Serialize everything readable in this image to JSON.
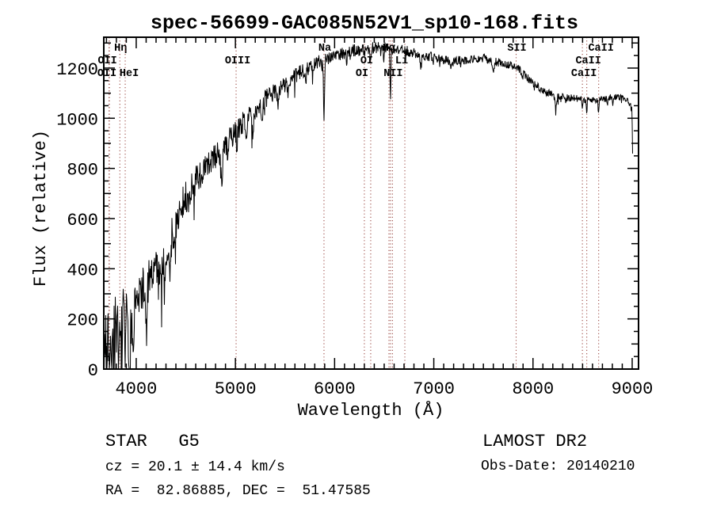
{
  "title": "spec-56699-GAC085N52V1_sp10-168.fits",
  "annotations": {
    "class_label": "STAR   G5",
    "cz": "cz = 20.1 ± 14.4 km/s",
    "radec": "RA =  82.86885, DEC =  51.47585",
    "survey": "LAMOST DR2",
    "obs_date": "Obs-Date: 20140210"
  },
  "chart_data": {
    "type": "line",
    "title": "spec-56699-GAC085N52V1_sp10-168.fits",
    "xlabel": "Wavelength (Å)",
    "ylabel": "Flux (relative)",
    "xlim": [
      3673,
      9064
    ],
    "ylim": [
      0,
      1323
    ],
    "x_major_ticks": [
      4000,
      5000,
      6000,
      7000,
      8000,
      9000
    ],
    "x_minor_step": 100,
    "y_major_ticks": [
      0,
      200,
      400,
      600,
      800,
      1000,
      1200
    ],
    "y_minor_step": 50,
    "grid": false,
    "legend": null,
    "line_color": "#000000",
    "marker_line_color": "#9c4a44",
    "seed": 7,
    "spectrum_end": 9008,
    "line_markers": [
      {
        "label": "OII",
        "wavelength": 3726,
        "row": 2,
        "dx": -2
      },
      {
        "label": "OII",
        "wavelength": 3729,
        "row": 3,
        "dx": -3
      },
      {
        "label": "Hη",
        "wavelength": 3835,
        "row": 1,
        "dx": 1
      },
      {
        "label": "HeI",
        "wavelength": 3889,
        "row": 3,
        "dx": 5
      },
      {
        "label": "OIII",
        "wavelength": 5007,
        "row": 2,
        "dx": 2
      },
      {
        "label": "Na",
        "wavelength": 5893,
        "row": 1,
        "dx": 1
      },
      {
        "label": "OI",
        "wavelength": 6300,
        "row": 3,
        "dx": -3
      },
      {
        "label": "OI",
        "wavelength": 6364,
        "row": 2,
        "dx": -5
      },
      {
        "label": "",
        "wavelength": 6548,
        "row": 0,
        "dx": 0
      },
      {
        "label": "Hα",
        "wavelength": 6563,
        "row": 1,
        "dx": -2
      },
      {
        "label": "NII",
        "wavelength": 6583,
        "row": 3,
        "dx": 1
      },
      {
        "label": "Li",
        "wavelength": 6708,
        "row": 2,
        "dx": -4
      },
      {
        "label": "SII",
        "wavelength": 7830,
        "row": 1,
        "dx": 1
      },
      {
        "label": "CaII",
        "wavelength": 8498,
        "row": 3,
        "dx": 2
      },
      {
        "label": "CaII",
        "wavelength": 8542,
        "row": 2,
        "dx": 2
      },
      {
        "label": "CaII",
        "wavelength": 8662,
        "row": 1,
        "dx": 3
      }
    ],
    "continuum": [
      [
        3676,
        30
      ],
      [
        3690,
        150
      ],
      [
        3705,
        90
      ],
      [
        3720,
        190
      ],
      [
        3735,
        120
      ],
      [
        3750,
        200
      ],
      [
        3770,
        150
      ],
      [
        3790,
        210
      ],
      [
        3810,
        160
      ],
      [
        3830,
        210
      ],
      [
        3850,
        170
      ],
      [
        3870,
        230
      ],
      [
        3890,
        200
      ],
      [
        3910,
        250
      ],
      [
        3930,
        180
      ],
      [
        3950,
        240
      ],
      [
        3970,
        230
      ],
      [
        4000,
        300
      ],
      [
        4050,
        320
      ],
      [
        4100,
        330
      ],
      [
        4150,
        390
      ],
      [
        4200,
        420
      ],
      [
        4250,
        440
      ],
      [
        4300,
        480
      ],
      [
        4350,
        540
      ],
      [
        4400,
        590
      ],
      [
        4450,
        640
      ],
      [
        4500,
        690
      ],
      [
        4550,
        720
      ],
      [
        4600,
        750
      ],
      [
        4650,
        780
      ],
      [
        4700,
        800
      ],
      [
        4750,
        825
      ],
      [
        4800,
        850
      ],
      [
        4850,
        870
      ],
      [
        4900,
        895
      ],
      [
        4950,
        920
      ],
      [
        5000,
        945
      ],
      [
        5050,
        970
      ],
      [
        5100,
        995
      ],
      [
        5150,
        1015
      ],
      [
        5200,
        1035
      ],
      [
        5250,
        1055
      ],
      [
        5300,
        1075
      ],
      [
        5350,
        1090
      ],
      [
        5400,
        1105
      ],
      [
        5450,
        1120
      ],
      [
        5500,
        1135
      ],
      [
        5550,
        1150
      ],
      [
        5600,
        1165
      ],
      [
        5650,
        1180
      ],
      [
        5700,
        1195
      ],
      [
        5750,
        1205
      ],
      [
        5800,
        1215
      ],
      [
        5850,
        1225
      ],
      [
        5900,
        1235
      ],
      [
        5950,
        1245
      ],
      [
        6000,
        1252
      ],
      [
        6100,
        1262
      ],
      [
        6200,
        1270
      ],
      [
        6300,
        1276
      ],
      [
        6400,
        1281
      ],
      [
        6500,
        1281
      ],
      [
        6600,
        1277
      ],
      [
        6700,
        1271
      ],
      [
        6800,
        1260
      ],
      [
        6900,
        1250
      ],
      [
        7000,
        1242
      ],
      [
        7100,
        1234
      ],
      [
        7200,
        1229
      ],
      [
        7300,
        1232
      ],
      [
        7400,
        1236
      ],
      [
        7500,
        1240
      ],
      [
        7600,
        1228
      ],
      [
        7700,
        1218
      ],
      [
        7800,
        1208
      ],
      [
        7850,
        1200
      ],
      [
        7900,
        1180
      ],
      [
        7950,
        1160
      ],
      [
        8000,
        1140
      ],
      [
        8050,
        1125
      ],
      [
        8100,
        1110
      ],
      [
        8150,
        1102
      ],
      [
        8200,
        1095
      ],
      [
        8300,
        1085
      ],
      [
        8400,
        1080
      ],
      [
        8500,
        1076
      ],
      [
        8600,
        1073
      ],
      [
        8700,
        1076
      ],
      [
        8800,
        1083
      ],
      [
        8850,
        1086
      ],
      [
        8900,
        1080
      ],
      [
        8950,
        1068
      ],
      [
        8985,
        1050
      ],
      [
        8998,
        1030
      ],
      [
        9004,
        870
      ],
      [
        9008,
        700
      ]
    ],
    "noise_profile": [
      [
        3676,
        170
      ],
      [
        3750,
        160
      ],
      [
        3850,
        130
      ],
      [
        3950,
        110
      ],
      [
        4100,
        90
      ],
      [
        4300,
        80
      ],
      [
        4500,
        65
      ],
      [
        4700,
        55
      ],
      [
        5000,
        45
      ],
      [
        5300,
        38
      ],
      [
        5600,
        32
      ],
      [
        5900,
        28
      ],
      [
        6200,
        25
      ],
      [
        6500,
        22
      ],
      [
        6800,
        20
      ],
      [
        7200,
        18
      ],
      [
        7600,
        17
      ],
      [
        8000,
        16
      ],
      [
        8400,
        14
      ],
      [
        8800,
        13
      ],
      [
        9010,
        14
      ]
    ],
    "absorption_lines": [
      [
        3712,
        100,
        6
      ],
      [
        3734,
        130,
        5
      ],
      [
        3750,
        120,
        4
      ],
      [
        3770,
        110,
        5
      ],
      [
        3798,
        140,
        6
      ],
      [
        3820,
        110,
        5
      ],
      [
        3835,
        150,
        6
      ],
      [
        3860,
        120,
        5
      ],
      [
        3889,
        170,
        7
      ],
      [
        3920,
        120,
        5
      ],
      [
        3933,
        190,
        8
      ],
      [
        3968,
        170,
        8
      ],
      [
        4026,
        80,
        5
      ],
      [
        4101,
        190,
        9
      ],
      [
        4144,
        70,
        5
      ],
      [
        4226,
        90,
        6
      ],
      [
        4260,
        70,
        5
      ],
      [
        4300,
        110,
        12
      ],
      [
        4340,
        170,
        9
      ],
      [
        4383,
        100,
        6
      ],
      [
        4457,
        70,
        5
      ],
      [
        4530,
        70,
        6
      ],
      [
        4668,
        80,
        6
      ],
      [
        4861,
        150,
        8
      ],
      [
        4920,
        70,
        5
      ],
      [
        5015,
        60,
        5
      ],
      [
        5110,
        60,
        6
      ],
      [
        5175,
        90,
        10
      ],
      [
        5270,
        70,
        7
      ],
      [
        5430,
        50,
        6
      ],
      [
        5530,
        50,
        6
      ],
      [
        5710,
        40,
        5
      ],
      [
        5782,
        35,
        5
      ],
      [
        5893,
        225,
        5
      ],
      [
        6122,
        40,
        5
      ],
      [
        6162,
        35,
        4
      ],
      [
        6300,
        35,
        3
      ],
      [
        6364,
        30,
        3
      ],
      [
        6495,
        40,
        4
      ],
      [
        6563,
        205,
        4
      ],
      [
        6583,
        40,
        3
      ],
      [
        6717,
        30,
        4
      ],
      [
        6870,
        45,
        7
      ],
      [
        7180,
        30,
        8
      ],
      [
        7600,
        55,
        9
      ],
      [
        7890,
        30,
        6
      ],
      [
        8230,
        45,
        9
      ],
      [
        8330,
        25,
        5
      ],
      [
        8498,
        50,
        3
      ],
      [
        8542,
        60,
        3
      ],
      [
        8662,
        55,
        3
      ],
      [
        8750,
        30,
        4
      ],
      [
        8806,
        25,
        4
      ]
    ]
  }
}
